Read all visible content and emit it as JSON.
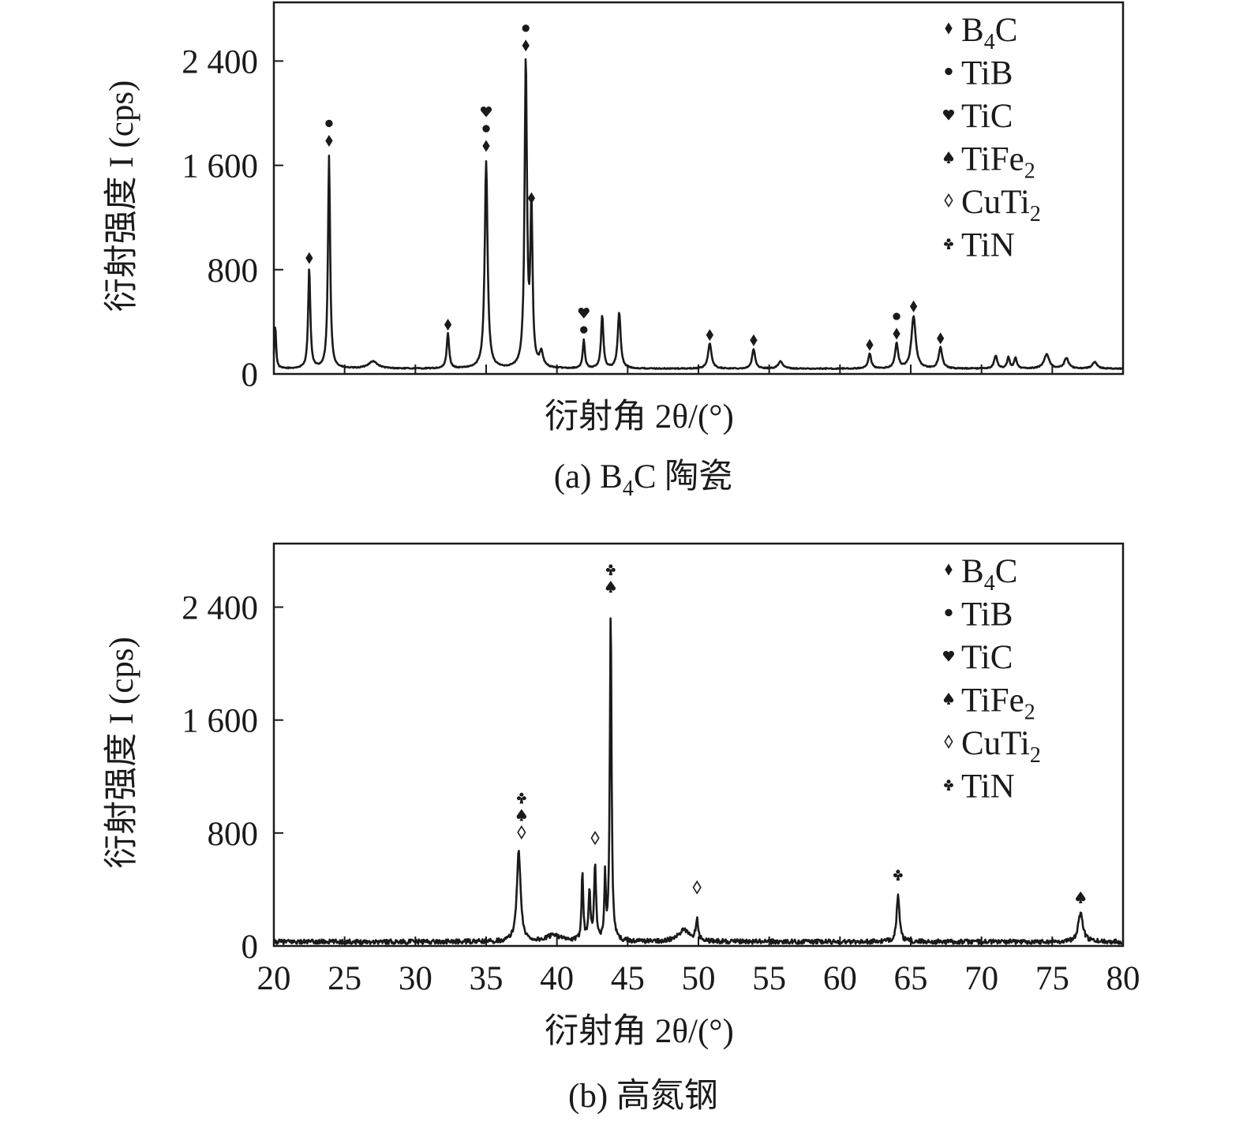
{
  "chart_data": [
    {
      "id": "a",
      "type": "line",
      "caption": "(a) B4C 陶瓷",
      "caption_parts": {
        "prefix": "(a) B",
        "sub": "4",
        "suffix": "C 陶瓷"
      },
      "xlabel": "衍射角 2θ/(°)",
      "ylabel": "衍射强度 I (cps)",
      "xlim": [
        20,
        80
      ],
      "ylim": [
        0,
        2850
      ],
      "xticks_labeled": false,
      "yticks": [
        0,
        800,
        1600,
        2400
      ],
      "yticklabels": [
        "0",
        "800",
        "1 600",
        "2 400"
      ],
      "baseline": 40,
      "peaks": [
        {
          "x": 20.1,
          "y": 330,
          "w": 0.07
        },
        {
          "x": 22.5,
          "y": 770,
          "w": 0.09
        },
        {
          "x": 23.9,
          "y": 1630,
          "w": 0.09
        },
        {
          "x": 27.0,
          "y": 55,
          "w": 0.4
        },
        {
          "x": 32.3,
          "y": 270,
          "w": 0.1
        },
        {
          "x": 35.0,
          "y": 1590,
          "w": 0.12
        },
        {
          "x": 37.8,
          "y": 2360,
          "w": 0.1
        },
        {
          "x": 38.2,
          "y": 1220,
          "w": 0.09
        },
        {
          "x": 38.9,
          "y": 110,
          "w": 0.15
        },
        {
          "x": 41.9,
          "y": 220,
          "w": 0.09
        },
        {
          "x": 43.2,
          "y": 410,
          "w": 0.1
        },
        {
          "x": 44.4,
          "y": 430,
          "w": 0.12
        },
        {
          "x": 50.8,
          "y": 190,
          "w": 0.15
        },
        {
          "x": 53.9,
          "y": 150,
          "w": 0.13
        },
        {
          "x": 55.8,
          "y": 55,
          "w": 0.2
        },
        {
          "x": 62.1,
          "y": 115,
          "w": 0.12
        },
        {
          "x": 64.0,
          "y": 190,
          "w": 0.13
        },
        {
          "x": 65.2,
          "y": 400,
          "w": 0.18
        },
        {
          "x": 67.1,
          "y": 160,
          "w": 0.15
        },
        {
          "x": 71.0,
          "y": 100,
          "w": 0.13
        },
        {
          "x": 71.9,
          "y": 85,
          "w": 0.11
        },
        {
          "x": 72.4,
          "y": 80,
          "w": 0.11
        },
        {
          "x": 74.6,
          "y": 110,
          "w": 0.22
        },
        {
          "x": 76.0,
          "y": 80,
          "w": 0.18
        },
        {
          "x": 78.0,
          "y": 50,
          "w": 0.2
        }
      ],
      "phase_markers": [
        {
          "x": 22.5,
          "y": 840,
          "symbols": [
            "B4C"
          ]
        },
        {
          "x": 23.9,
          "y": 1740,
          "symbols": [
            "B4C",
            "TiB"
          ]
        },
        {
          "x": 32.3,
          "y": 330,
          "symbols": [
            "B4C"
          ]
        },
        {
          "x": 35.0,
          "y": 1700,
          "symbols": [
            "B4C",
            "TiB",
            "TiC"
          ]
        },
        {
          "x": 37.8,
          "y": 2470,
          "symbols": [
            "B4C",
            "TiB"
          ]
        },
        {
          "x": 38.2,
          "y": 1300,
          "symbols": [
            "B4C"
          ]
        },
        {
          "x": 41.9,
          "y": 290,
          "symbols": [
            "TiB",
            "TiC"
          ]
        },
        {
          "x": 50.8,
          "y": 250,
          "symbols": [
            "B4C"
          ]
        },
        {
          "x": 53.9,
          "y": 210,
          "symbols": [
            "B4C"
          ]
        },
        {
          "x": 62.1,
          "y": 175,
          "symbols": [
            "B4C"
          ]
        },
        {
          "x": 64.0,
          "y": 260,
          "symbols": [
            "B4C",
            "TiB"
          ]
        },
        {
          "x": 65.2,
          "y": 470,
          "symbols": [
            "B4C"
          ]
        },
        {
          "x": 67.1,
          "y": 225,
          "symbols": [
            "B4C"
          ]
        }
      ],
      "legend": [
        {
          "key": "B4C",
          "symbol": "diamond",
          "label": "B",
          "sub": "4",
          "suffix": "C"
        },
        {
          "key": "TiB",
          "symbol": "dot",
          "label": "TiB",
          "sub": "",
          "suffix": ""
        },
        {
          "key": "TiC",
          "symbol": "heart",
          "label": "TiC",
          "sub": "",
          "suffix": ""
        },
        {
          "key": "TiFe2",
          "symbol": "spade",
          "label": "TiFe",
          "sub": "2",
          "suffix": ""
        },
        {
          "key": "CuTi2",
          "symbol": "open-diamond",
          "label": "CuTi",
          "sub": "2",
          "suffix": ""
        },
        {
          "key": "TiN",
          "symbol": "club",
          "label": "TiN",
          "sub": "",
          "suffix": ""
        }
      ],
      "legend_position": "top-right"
    },
    {
      "id": "b",
      "type": "line",
      "caption": "(b) 高氮钢",
      "caption_parts": {
        "prefix": "(b) 高氮钢",
        "sub": "",
        "suffix": ""
      },
      "xlabel": "衍射角 2θ/(°)",
      "ylabel": "衍射强度 I (cps)",
      "xlim": [
        20,
        80
      ],
      "ylim": [
        0,
        2850
      ],
      "xticks_labeled": true,
      "xticks": [
        20,
        25,
        30,
        35,
        40,
        45,
        50,
        55,
        60,
        65,
        70,
        75,
        80
      ],
      "yticks": [
        0,
        800,
        1600,
        2400
      ],
      "yticklabels": [
        "0",
        "800",
        "1 600",
        "2 400"
      ],
      "baseline": 30,
      "noise": 16,
      "peaks": [
        {
          "x": 37.3,
          "y": 640,
          "w": 0.16
        },
        {
          "x": 39.8,
          "y": 50,
          "w": 0.5
        },
        {
          "x": 41.8,
          "y": 500,
          "w": 0.07
        },
        {
          "x": 42.3,
          "y": 360,
          "w": 0.08
        },
        {
          "x": 42.7,
          "y": 540,
          "w": 0.08
        },
        {
          "x": 43.4,
          "y": 440,
          "w": 0.06
        },
        {
          "x": 43.8,
          "y": 2380,
          "w": 0.07
        },
        {
          "x": 49.0,
          "y": 80,
          "w": 0.5
        },
        {
          "x": 49.9,
          "y": 150,
          "w": 0.1
        },
        {
          "x": 64.1,
          "y": 330,
          "w": 0.12
        },
        {
          "x": 77.0,
          "y": 200,
          "w": 0.2
        }
      ],
      "phase_markers": [
        {
          "x": 37.5,
          "y": 760,
          "symbols": [
            "CuTi2",
            "TiFe2",
            "TiN"
          ]
        },
        {
          "x": 42.7,
          "y": 720,
          "symbols": [
            "CuTi2"
          ]
        },
        {
          "x": 43.8,
          "y": 2500,
          "symbols": [
            "TiFe2",
            "TiN"
          ]
        },
        {
          "x": 49.9,
          "y": 370,
          "symbols": [
            "CuTi2"
          ]
        },
        {
          "x": 64.1,
          "y": 460,
          "symbols": [
            "TiN"
          ]
        },
        {
          "x": 77.0,
          "y": 300,
          "symbols": [
            "TiFe2"
          ]
        }
      ],
      "legend": [
        {
          "key": "B4C",
          "symbol": "diamond",
          "label": "B",
          "sub": "4",
          "suffix": "C"
        },
        {
          "key": "TiB",
          "symbol": "dot",
          "label": "TiB",
          "sub": "",
          "suffix": ""
        },
        {
          "key": "TiC",
          "symbol": "heart",
          "label": "TiC",
          "sub": "",
          "suffix": ""
        },
        {
          "key": "TiFe2",
          "symbol": "spade",
          "label": "TiFe",
          "sub": "2",
          "suffix": ""
        },
        {
          "key": "CuTi2",
          "symbol": "open-diamond",
          "label": "CuTi",
          "sub": "2",
          "suffix": ""
        },
        {
          "key": "TiN",
          "symbol": "club",
          "label": "TiN",
          "sub": "",
          "suffix": ""
        }
      ],
      "legend_position": "top-right"
    }
  ]
}
